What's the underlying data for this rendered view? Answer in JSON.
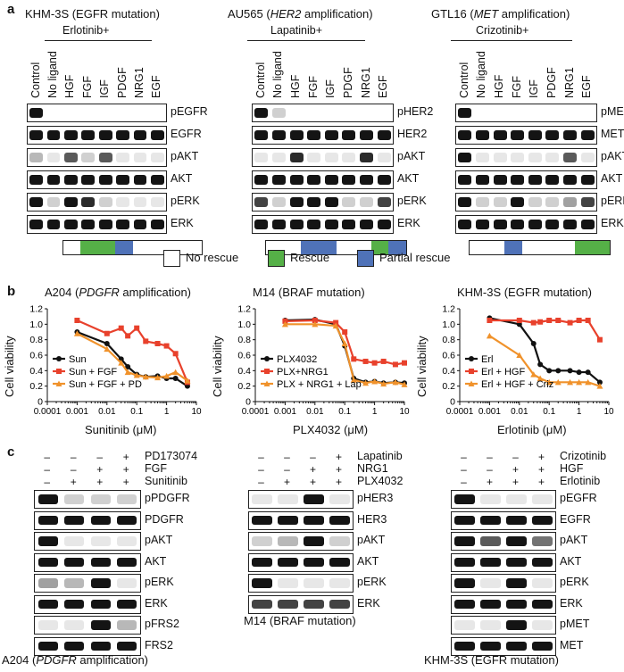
{
  "panel_a": {
    "label": "a",
    "blocks": [
      {
        "title_pre": "KHM-3S (EGFR mutation)",
        "title_it": "",
        "title_post": "",
        "drug": "Erlotinib+",
        "lanes": [
          "Control",
          "No ligand",
          "HGF",
          "FGF",
          "IGF",
          "PDGF",
          "NRG1",
          "EGF"
        ],
        "blots": [
          "pEGFR",
          "EGFR",
          "pAKT",
          "AKT",
          "pERK",
          "ERK"
        ],
        "rescue": [
          "none",
          "green",
          "green",
          "blue",
          "none",
          "none",
          "none",
          "none"
        ]
      },
      {
        "title_pre": "AU565 (",
        "title_it": "HER2",
        "title_post": " amplification)",
        "drug": "Lapatinib+",
        "lanes": [
          "Control",
          "No ligand",
          "HGF",
          "FGF",
          "IGF",
          "PDGF",
          "NRG1",
          "EGF"
        ],
        "blots": [
          "pHER2",
          "HER2",
          "pAKT",
          "AKT",
          "pERK",
          "ERK"
        ],
        "rescue": [
          "none",
          "none",
          "blue",
          "blue",
          "none",
          "none",
          "green",
          "blue"
        ]
      },
      {
        "title_pre": "GTL16 (",
        "title_it": "MET",
        "title_post": " amplification)",
        "drug": "Crizotinib+",
        "lanes": [
          "Control",
          "No ligand",
          "HGF",
          "FGF",
          "IGF",
          "PDGF",
          "NRG1",
          "EGF"
        ],
        "blots": [
          "pMET",
          "MET",
          "pAKT",
          "AKT",
          "pERK",
          "ERK"
        ],
        "rescue": [
          "none",
          "none",
          "blue",
          "none",
          "none",
          "none",
          "green",
          "green"
        ]
      }
    ],
    "legend": [
      {
        "label": "No rescue",
        "color": "#ffffff"
      },
      {
        "label": "Rescue",
        "color": "#55b047"
      },
      {
        "label": "Partial rescue",
        "color": "#4f72b8"
      }
    ]
  },
  "panel_b": {
    "label": "b",
    "y_axis_label": "Cell viability",
    "chart_data": [
      {
        "type": "line",
        "title_pre": "A204 (",
        "title_it": "PDGFR",
        "title_post": " amplification)",
        "xlabel": "Sunitinib (μM)",
        "xscale": "log",
        "xlim": [
          0.0001,
          10
        ],
        "ylim": [
          0,
          1.2
        ],
        "xticks": [
          "0.0001",
          "0.001",
          "0.01",
          "0.1",
          "1",
          "10"
        ],
        "yticks": [
          "0",
          "0.2",
          "0.4",
          "0.6",
          "0.8",
          "1.0",
          "1.2"
        ],
        "legend_position": "left",
        "series": [
          {
            "name": "Sun",
            "color": "#111111",
            "marker": "circle",
            "x": [
              0.001,
              0.01,
              0.03,
              0.05,
              0.1,
              0.2,
              0.5,
              1,
              2,
              5
            ],
            "y": [
              0.9,
              0.75,
              0.55,
              0.45,
              0.35,
              0.32,
              0.33,
              0.3,
              0.3,
              0.2
            ]
          },
          {
            "name": "Sun + FGF",
            "color": "#e8412c",
            "marker": "square",
            "x": [
              0.001,
              0.01,
              0.03,
              0.05,
              0.1,
              0.2,
              0.5,
              1,
              2,
              5
            ],
            "y": [
              1.05,
              0.88,
              0.95,
              0.85,
              0.95,
              0.78,
              0.75,
              0.72,
              0.62,
              0.25
            ]
          },
          {
            "name": "Sun + FGF + PD",
            "color": "#f0922b",
            "marker": "triangle",
            "x": [
              0.001,
              0.01,
              0.03,
              0.05,
              0.1,
              0.2,
              0.5,
              1,
              2,
              5
            ],
            "y": [
              0.88,
              0.68,
              0.5,
              0.38,
              0.34,
              0.32,
              0.31,
              0.33,
              0.38,
              0.27
            ]
          }
        ]
      },
      {
        "type": "line",
        "title_pre": "M14 (BRAF mutation)",
        "title_it": "",
        "title_post": "",
        "xlabel": "PLX4032 (μM)",
        "xscale": "log",
        "xlim": [
          0.0001,
          10
        ],
        "ylim": [
          0,
          1.2
        ],
        "xticks": [
          "0.0001",
          "0.001",
          "0.01",
          "0.1",
          "1",
          "10"
        ],
        "yticks": [
          "0",
          "0.2",
          "0.4",
          "0.6",
          "0.8",
          "1.0",
          "1.2"
        ],
        "legend_position": "left",
        "series": [
          {
            "name": "PLX4032",
            "color": "#111111",
            "marker": "circle",
            "x": [
              0.001,
              0.01,
              0.05,
              0.1,
              0.2,
              0.5,
              1,
              2,
              5,
              10
            ],
            "y": [
              1.05,
              1.06,
              1.0,
              0.72,
              0.3,
              0.25,
              0.26,
              0.24,
              0.25,
              0.24
            ]
          },
          {
            "name": "PLX+NRG1",
            "color": "#e8412c",
            "marker": "square",
            "x": [
              0.001,
              0.01,
              0.05,
              0.1,
              0.2,
              0.5,
              1,
              2,
              5,
              10
            ],
            "y": [
              1.04,
              1.05,
              1.02,
              0.9,
              0.55,
              0.52,
              0.5,
              0.52,
              0.48,
              0.5
            ]
          },
          {
            "name": "PLX + NRG1 + Lap",
            "color": "#f0922b",
            "marker": "triangle",
            "x": [
              0.001,
              0.01,
              0.05,
              0.1,
              0.2,
              0.5,
              1,
              2,
              5,
              10
            ],
            "y": [
              1.0,
              1.0,
              0.98,
              0.75,
              0.28,
              0.24,
              0.26,
              0.23,
              0.25,
              0.22
            ]
          }
        ]
      },
      {
        "type": "line",
        "title_pre": "KHM-3S (EGFR mutation)",
        "title_it": "",
        "title_post": "",
        "xlabel": "Erlotinib (μM)",
        "xscale": "log",
        "xlim": [
          0.0001,
          10
        ],
        "ylim": [
          0,
          1.2
        ],
        "xticks": [
          "0.0001",
          "0.001",
          "0.01",
          "0.1",
          "1",
          "10"
        ],
        "yticks": [
          "0",
          "0.2",
          "0.4",
          "0.6",
          "0.8",
          "1.0",
          "1.2"
        ],
        "legend_position": "left",
        "series": [
          {
            "name": "Erl",
            "color": "#111111",
            "marker": "circle",
            "x": [
              0.001,
              0.01,
              0.03,
              0.05,
              0.1,
              0.2,
              0.5,
              1,
              2,
              5
            ],
            "y": [
              1.08,
              1.0,
              0.75,
              0.48,
              0.4,
              0.4,
              0.4,
              0.38,
              0.38,
              0.25
            ]
          },
          {
            "name": "Erl + HGF",
            "color": "#e8412c",
            "marker": "square",
            "x": [
              0.001,
              0.01,
              0.03,
              0.05,
              0.1,
              0.2,
              0.5,
              1,
              2,
              5
            ],
            "y": [
              1.05,
              1.05,
              1.02,
              1.03,
              1.05,
              1.05,
              1.02,
              1.05,
              1.05,
              0.8
            ]
          },
          {
            "name": "Erl + HGF + Criz",
            "color": "#f0922b",
            "marker": "triangle",
            "x": [
              0.001,
              0.01,
              0.03,
              0.05,
              0.1,
              0.2,
              0.5,
              1,
              2,
              5
            ],
            "y": [
              0.85,
              0.6,
              0.35,
              0.3,
              0.25,
              0.25,
              0.25,
              0.25,
              0.25,
              0.2
            ]
          }
        ]
      }
    ]
  },
  "panel_c": {
    "label": "c",
    "blocks": [
      {
        "treat": [
          {
            "name": "PD173074",
            "signs": [
              "–",
              "–",
              "–",
              "+"
            ]
          },
          {
            "name": "FGF",
            "signs": [
              "–",
              "–",
              "+",
              "+"
            ]
          },
          {
            "name": "Sunitinib",
            "signs": [
              "–",
              "+",
              "+",
              "+"
            ]
          }
        ],
        "blots": [
          "pPDGFR",
          "PDGFR",
          "pAKT",
          "AKT",
          "pERK",
          "ERK",
          "pFRS2",
          "FRS2"
        ],
        "caption_pre": "A204 (",
        "caption_it": "PDGFR",
        "caption_post": " amplification)"
      },
      {
        "treat": [
          {
            "name": "Lapatinib",
            "signs": [
              "–",
              "–",
              "–",
              "+"
            ]
          },
          {
            "name": "NRG1",
            "signs": [
              "–",
              "–",
              "+",
              "+"
            ]
          },
          {
            "name": "PLX4032",
            "signs": [
              "–",
              "+",
              "+",
              "+"
            ]
          }
        ],
        "blots": [
          "pHER3",
          "HER3",
          "pAKT",
          "AKT",
          "pERK",
          "ERK"
        ],
        "caption_pre": "M14 (BRAF mutation)",
        "caption_it": "",
        "caption_post": ""
      },
      {
        "treat": [
          {
            "name": "Crizotinib",
            "signs": [
              "–",
              "–",
              "–",
              "+"
            ]
          },
          {
            "name": "HGF",
            "signs": [
              "–",
              "–",
              "+",
              "+"
            ]
          },
          {
            "name": "Erlotinib",
            "signs": [
              "–",
              "+",
              "+",
              "+"
            ]
          }
        ],
        "blots": [
          "pEGFR",
          "EGFR",
          "pAKT",
          "AKT",
          "pERK",
          "ERK",
          "pMET",
          "MET"
        ],
        "caption_pre": "KHM-3S (EGFR mutation)",
        "caption_it": "",
        "caption_post": ""
      }
    ]
  }
}
